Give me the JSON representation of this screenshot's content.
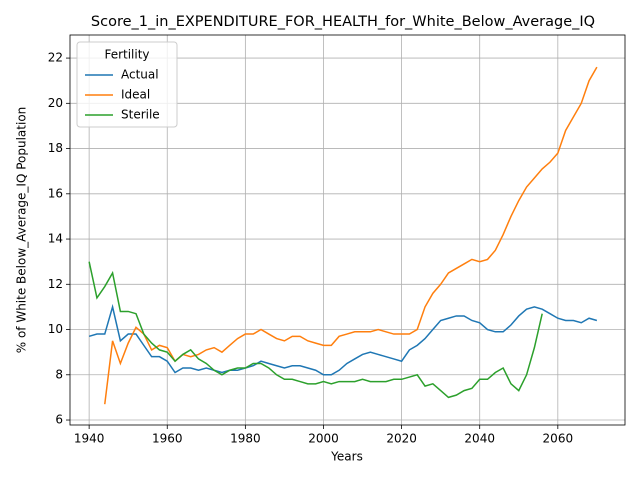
{
  "chart_data": {
    "type": "line",
    "title": "Score_1_in_EXPENDITURE_FOR_HEALTH_for_White_Below_Average_IQ",
    "xlabel": "Years",
    "ylabel": "% of White Below_Average_IQ Population",
    "legend_title": "Fertility",
    "legend": "upper left",
    "grid": true,
    "x": [
      1940,
      1942,
      1944,
      1946,
      1948,
      1950,
      1952,
      1954,
      1956,
      1958,
      1960,
      1962,
      1964,
      1966,
      1968,
      1970,
      1972,
      1974,
      1976,
      1978,
      1980,
      1982,
      1984,
      1986,
      1988,
      1990,
      1992,
      1994,
      1996,
      1998,
      2000,
      2002,
      2004,
      2006,
      2008,
      2010,
      2012,
      2014,
      2016,
      2018,
      2020,
      2022,
      2024,
      2026,
      2028,
      2030,
      2032,
      2034,
      2036,
      2038,
      2040,
      2042,
      2044,
      2046,
      2048,
      2050,
      2052,
      2054,
      2056,
      2058,
      2060,
      2062,
      2064,
      2066,
      2068,
      2070
    ],
    "series": [
      {
        "name": "Actual",
        "color": "#1f77b4",
        "values": [
          9.7,
          9.8,
          9.8,
          11.0,
          9.5,
          9.8,
          9.8,
          9.3,
          8.8,
          8.8,
          8.6,
          8.1,
          8.3,
          8.3,
          8.2,
          8.3,
          8.2,
          8.1,
          8.2,
          8.2,
          8.3,
          8.4,
          8.6,
          8.5,
          8.4,
          8.3,
          8.4,
          8.4,
          8.3,
          8.2,
          8.0,
          8.0,
          8.2,
          8.5,
          8.7,
          8.9,
          9.0,
          8.9,
          8.8,
          8.7,
          8.6,
          9.1,
          9.3,
          9.6,
          10.0,
          10.4,
          10.5,
          10.6,
          10.6,
          10.4,
          10.3,
          10.0,
          9.9,
          9.9,
          10.2,
          10.6,
          10.9,
          11.0,
          10.9,
          10.7,
          10.5,
          10.4,
          10.4,
          10.3,
          10.5,
          10.4
        ]
      },
      {
        "name": "Ideal",
        "color": "#ff7f0e",
        "values": [
          null,
          null,
          6.7,
          9.5,
          8.5,
          9.4,
          10.1,
          9.8,
          9.1,
          9.3,
          9.2,
          8.6,
          8.9,
          8.8,
          8.9,
          9.1,
          9.2,
          9.0,
          9.3,
          9.6,
          9.8,
          9.8,
          10.0,
          9.8,
          9.6,
          9.5,
          9.7,
          9.7,
          9.5,
          9.4,
          9.3,
          9.3,
          9.7,
          9.8,
          9.9,
          9.9,
          9.9,
          10.0,
          9.9,
          9.8,
          9.8,
          9.8,
          10.0,
          11.0,
          11.6,
          12.0,
          12.5,
          12.7,
          12.9,
          13.1,
          13.0,
          13.1,
          13.5,
          14.2,
          15.0,
          15.7,
          16.3,
          16.7,
          17.1,
          17.4,
          17.8,
          18.8,
          19.4,
          20.0,
          21.0,
          21.6
        ]
      },
      {
        "name": "Sterile",
        "color": "#2ca02c",
        "values": [
          13.0,
          11.4,
          11.9,
          12.5,
          10.8,
          10.8,
          10.7,
          9.8,
          9.4,
          9.1,
          9.0,
          8.6,
          8.9,
          9.1,
          8.7,
          8.5,
          8.2,
          8.0,
          8.2,
          8.3,
          8.3,
          8.5,
          8.5,
          8.3,
          8.0,
          7.8,
          7.8,
          7.7,
          7.6,
          7.6,
          7.7,
          7.6,
          7.7,
          7.7,
          7.7,
          7.8,
          7.7,
          7.7,
          7.7,
          7.8,
          7.8,
          7.9,
          8.0,
          7.5,
          7.6,
          7.3,
          7.0,
          7.1,
          7.3,
          7.4,
          7.8,
          7.8,
          8.1,
          8.3,
          7.6,
          7.3,
          8.0,
          9.2,
          10.7,
          null,
          null,
          null,
          null,
          null,
          null,
          null
        ]
      }
    ],
    "xlim": [
      1935.1,
      2077.2
    ],
    "xticks": [
      1940,
      1960,
      1980,
      2000,
      2020,
      2040,
      2060
    ],
    "ylim": [
      5.78,
      23.02
    ],
    "yticks": [
      6,
      8,
      10,
      12,
      14,
      16,
      18,
      20,
      22
    ]
  }
}
